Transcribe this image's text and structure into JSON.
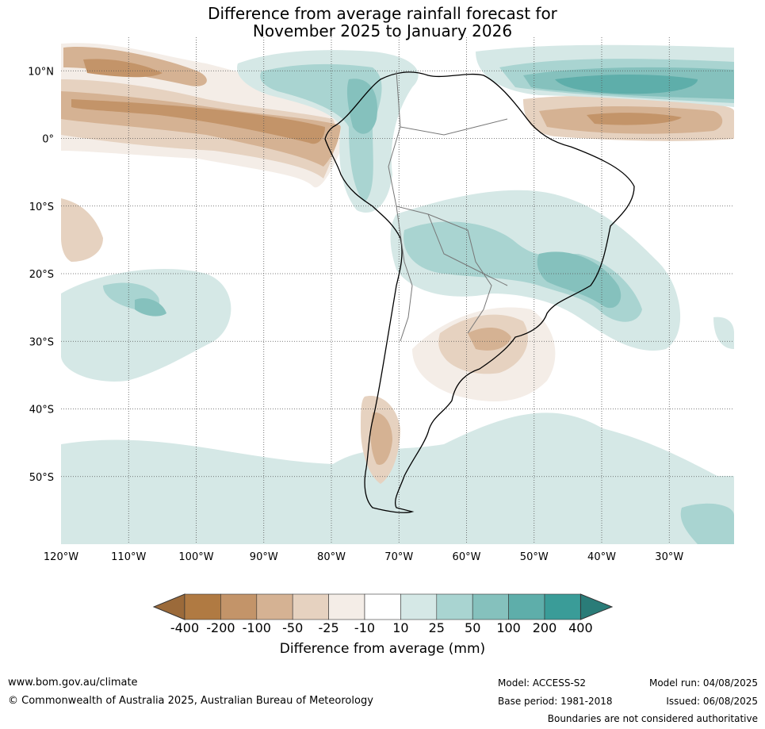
{
  "title": {
    "line1": "Difference from average rainfall forecast for",
    "line2": "November 2025 to January 2026"
  },
  "axes": {
    "lat_labels": [
      {
        "label": "10°N",
        "lat": 10
      },
      {
        "label": "0°",
        "lat": 0
      },
      {
        "label": "10°S",
        "lat": -10
      },
      {
        "label": "20°S",
        "lat": -20
      },
      {
        "label": "30°S",
        "lat": -30
      },
      {
        "label": "40°S",
        "lat": -40
      },
      {
        "label": "50°S",
        "lat": -50
      }
    ],
    "lon_labels": [
      {
        "label": "120°W",
        "lon": -120
      },
      {
        "label": "110°W",
        "lon": -110
      },
      {
        "label": "100°W",
        "lon": -100
      },
      {
        "label": "90°W",
        "lon": -90
      },
      {
        "label": "80°W",
        "lon": -80
      },
      {
        "label": "70°W",
        "lon": -70
      },
      {
        "label": "60°W",
        "lon": -60
      },
      {
        "label": "50°W",
        "lon": -50
      },
      {
        "label": "40°W",
        "lon": -40
      },
      {
        "label": "30°W",
        "lon": -30
      }
    ]
  },
  "colorbar": {
    "title": "Difference from average (mm)",
    "tick_labels": [
      "-400",
      "-200",
      "-100",
      "-50",
      "-25",
      "-10",
      "10",
      "25",
      "50",
      "100",
      "200",
      "400"
    ],
    "colors": [
      "#9b6a3a",
      "#b07a42",
      "#c39469",
      "#d5b293",
      "#e6d2c0",
      "#f4ede7",
      "#ffffff",
      "#d5e8e6",
      "#a9d4d1",
      "#85c1bd",
      "#5eaeaa",
      "#3a9c98",
      "#2a7c78"
    ]
  },
  "footer": {
    "website": "www.bom.gov.au/climate",
    "copyright": "© Commonwealth of Australia 2025, Australian Bureau of Meteorology",
    "model": "Model: ACCESS-S2",
    "base_period": "Base period: 1981-2018",
    "model_run": "Model run: 04/08/2025",
    "issued": "Issued: 06/08/2025",
    "boundaries_note": "Boundaries are not considered authoritative"
  }
}
